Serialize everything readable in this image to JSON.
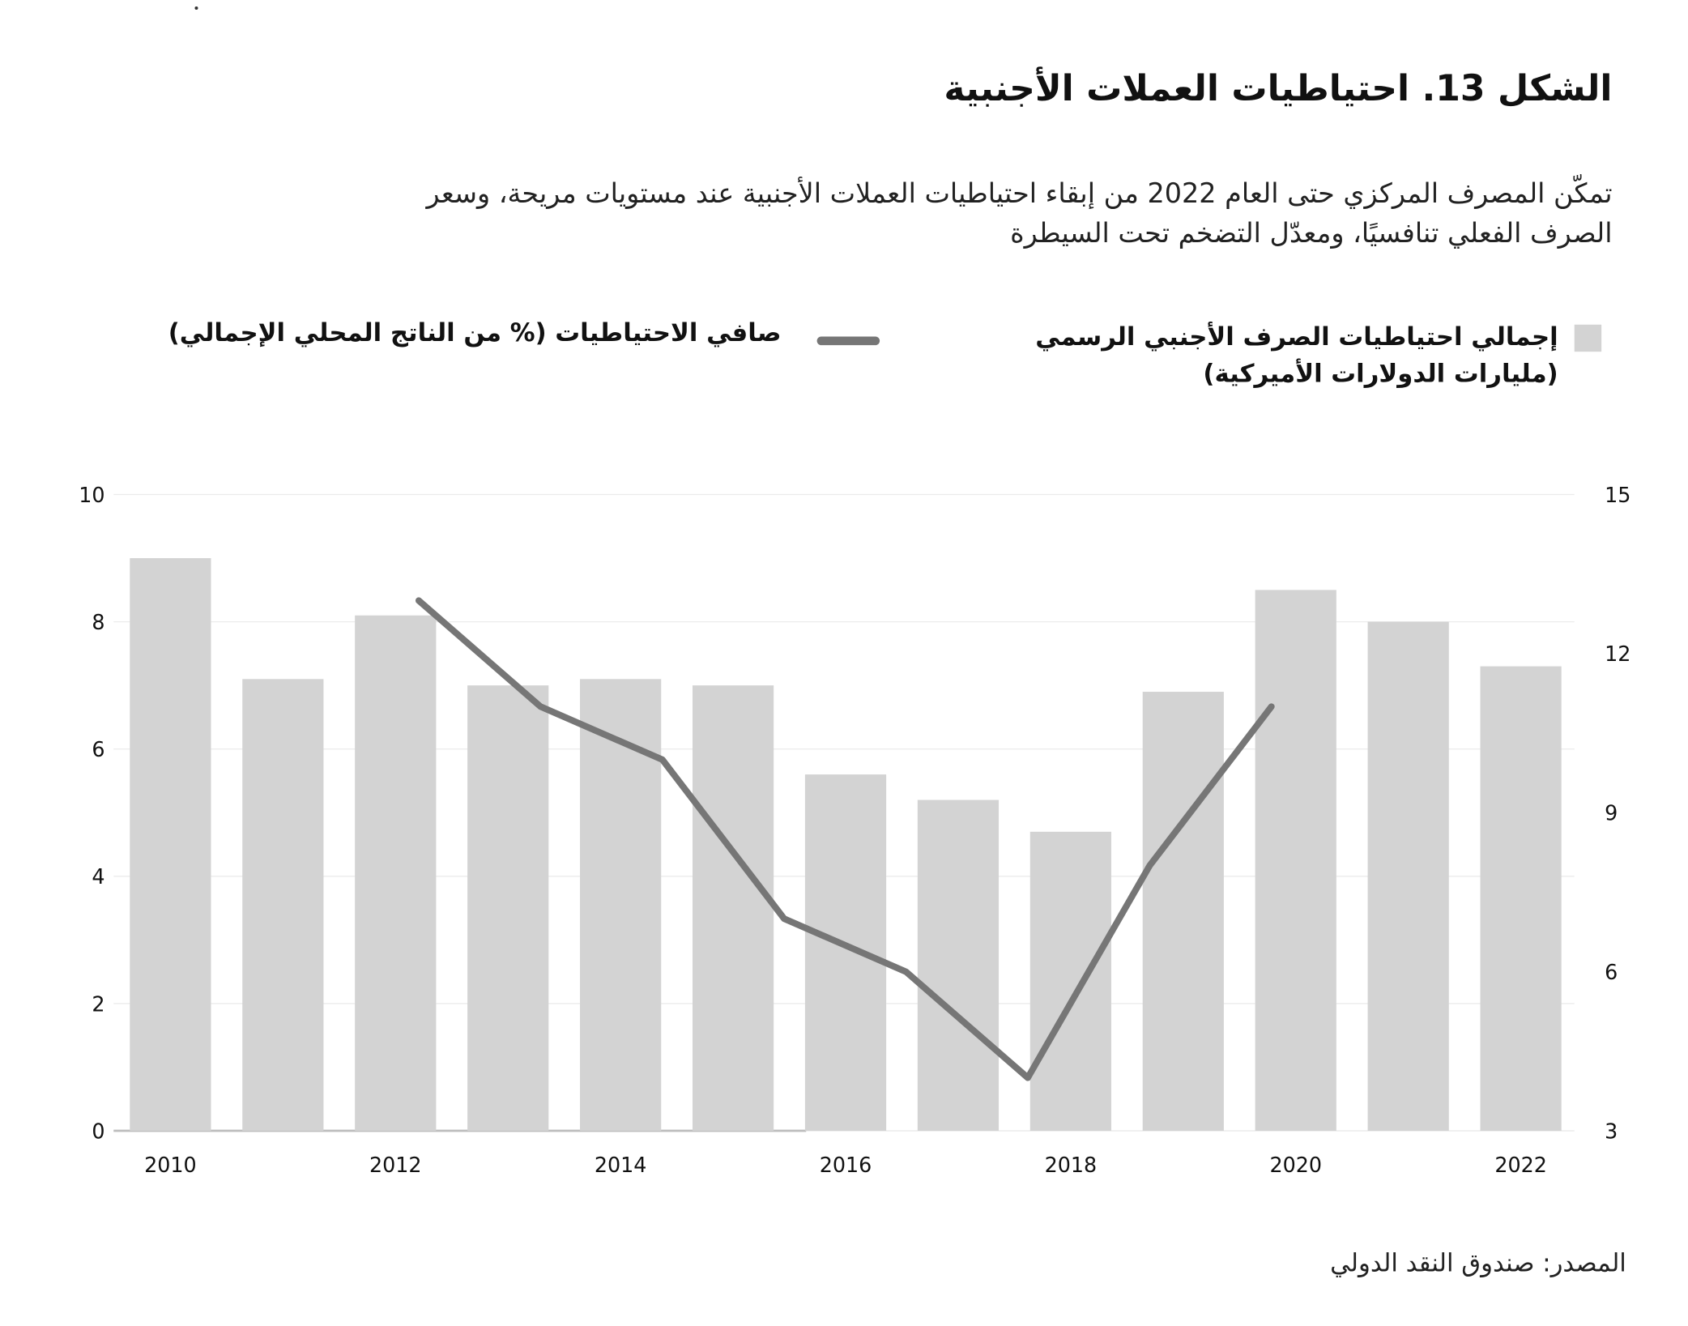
{
  "title": "الشكل 13. احتياطيات العملات الأجنبية",
  "subtitle": [
    "تمكّن المصرف المركزي حتى العام 2022 من إبقاء احتياطيات العملات الأجنبية عند مستويات مريحة، وسعر",
    "الصرف الفعلي تنافسيًا، ومعدّل التضخم تحت السيطرة"
  ],
  "source": "المصدر: صندوق النقد الدولي",
  "chart_data": {
    "type": "bar+line",
    "categories": [
      2010,
      2011,
      2012,
      2013,
      2014,
      2015,
      2016,
      2017,
      2018,
      2019,
      2020,
      2021,
      2022
    ],
    "x_tick_labels": [
      "2010",
      "2012",
      "2014",
      "2016",
      "2018",
      "2020",
      "2022"
    ],
    "legend_placement": "top",
    "grid": true,
    "series": [
      {
        "name": "إجمالي احتياطيات الصرف الأجنبي الرسمي (مليارات الدولارات الأميركية)",
        "name_lines": [
          "إجمالي احتياطيات الصرف الأجنبي الرسمي",
          "(مليارات الدولارات الأميركية)"
        ],
        "type": "bar",
        "axis": "left",
        "color": "#d3d3d3",
        "values": [
          9.0,
          7.1,
          8.1,
          7.0,
          7.1,
          7.0,
          5.6,
          5.2,
          4.7,
          6.9,
          8.5,
          8.0,
          7.3
        ]
      },
      {
        "name": "صافي الاحتياطيات (% من الناتج المحلي الإجمالي)",
        "type": "line",
        "axis": "right",
        "color": "#767676",
        "x": [
          2012,
          2013,
          2014,
          2015,
          2016,
          2017,
          2018,
          2019
        ],
        "values": [
          13,
          11,
          10,
          7,
          6,
          4,
          8,
          11
        ]
      }
    ],
    "left_axis": {
      "ylim": [
        0,
        10
      ],
      "ticks": [
        0,
        2,
        4,
        6,
        8,
        10
      ]
    },
    "right_axis": {
      "ylim": [
        3,
        15
      ],
      "ticks": [
        3,
        6,
        9,
        12,
        15
      ]
    }
  }
}
